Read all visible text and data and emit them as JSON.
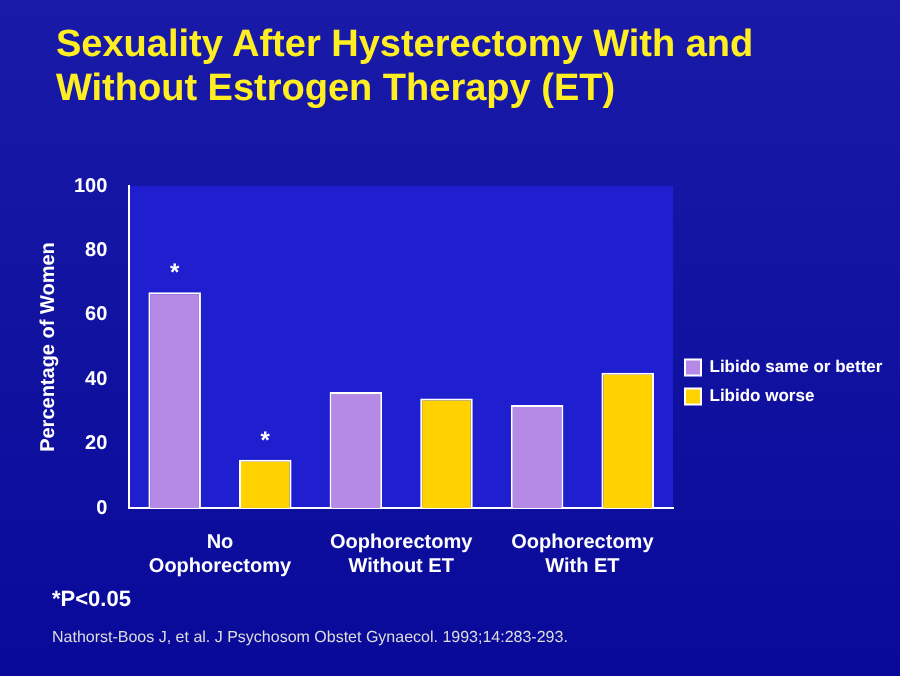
{
  "chart_data": {
    "type": "bar",
    "title": "Sexuality After Hysterectomy With and Without Estrogen Therapy (ET)",
    "ylabel": "Percentage of Women",
    "categories": [
      "No\nOophorectomy",
      "Oophorectomy\nWithout ET",
      "Oophorectomy\nWith ET"
    ],
    "series": [
      {
        "name": "Libido same or better",
        "color": "#b58ae6",
        "values": [
          67,
          36,
          32
        ],
        "value_labels": [
          "*",
          null,
          null
        ]
      },
      {
        "name": "Libido worse",
        "color": "#ffd200",
        "values": [
          15,
          34,
          42
        ],
        "value_labels": [
          "*",
          null,
          null
        ]
      }
    ],
    "ylim": [
      0,
      100
    ],
    "yticks": [
      0,
      20,
      40,
      60,
      80,
      100
    ],
    "grid": false,
    "legend": "right",
    "annotations": [
      "*P<0.05",
      "Nathorst-Boos J, et al. J Psychosom Obstet Gynaecol. 1993;14:283-293."
    ]
  }
}
